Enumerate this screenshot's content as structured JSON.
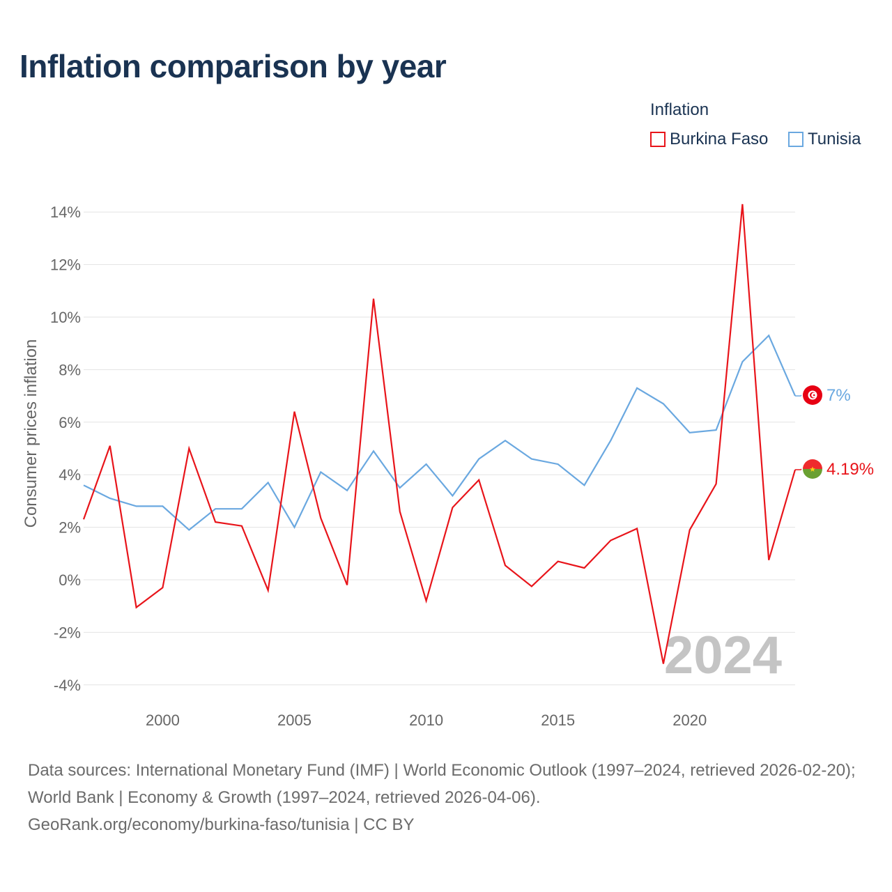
{
  "title": "Inflation comparison by year",
  "legend": {
    "title": "Inflation",
    "items": [
      {
        "name": "Burkina Faso",
        "color": "#e8141a"
      },
      {
        "name": "Tunisia",
        "color": "#6aa8e0"
      }
    ]
  },
  "sources": {
    "line1": "Data sources: International Monetary Fund (IMF) | World Economic Outlook (1997–2024, retrieved 2026-02-20); World Bank | Economy & Growth (1997–2024, retrieved 2026-04-06).",
    "line2": "GeoRank.org/economy/burkina-faso/tunisia | CC BY"
  },
  "chart_data": {
    "type": "line",
    "title": "Inflation comparison by year",
    "xlabel": "",
    "ylabel": "Consumer prices inflation",
    "year_watermark": "2024",
    "x": [
      1997,
      1998,
      1999,
      2000,
      2001,
      2002,
      2003,
      2004,
      2005,
      2006,
      2007,
      2008,
      2009,
      2010,
      2011,
      2012,
      2013,
      2014,
      2015,
      2016,
      2017,
      2018,
      2019,
      2020,
      2021,
      2022,
      2023,
      2024
    ],
    "xlim": [
      1997,
      2024
    ],
    "ylim": [
      -4.7,
      14.5
    ],
    "x_ticks": [
      2000,
      2005,
      2010,
      2015,
      2020
    ],
    "y_ticks": [
      -4,
      -2,
      0,
      2,
      4,
      6,
      8,
      10,
      12,
      14
    ],
    "y_tick_labels": [
      "-4%",
      "-2%",
      "0%",
      "2%",
      "4%",
      "6%",
      "8%",
      "10%",
      "12%",
      "14%"
    ],
    "grid": true,
    "legend_position": "top-right",
    "series": [
      {
        "name": "Burkina Faso",
        "color": "#e8141a",
        "values": [
          2.3,
          5.1,
          -1.05,
          -0.3,
          5.0,
          2.2,
          2.05,
          -0.4,
          6.4,
          2.35,
          -0.2,
          10.7,
          2.6,
          -0.8,
          2.75,
          3.8,
          0.55,
          -0.25,
          0.7,
          0.45,
          1.5,
          1.95,
          -3.2,
          1.9,
          3.65,
          14.3,
          0.75,
          4.19
        ],
        "end_label": "4.19%"
      },
      {
        "name": "Tunisia",
        "color": "#6aa8e0",
        "values": [
          3.6,
          3.1,
          2.8,
          2.8,
          1.9,
          2.7,
          2.7,
          3.7,
          2.0,
          4.1,
          3.4,
          4.9,
          3.5,
          4.4,
          3.2,
          4.6,
          5.3,
          4.6,
          4.4,
          3.6,
          5.3,
          7.3,
          6.7,
          5.6,
          5.7,
          8.3,
          9.3,
          7.0
        ],
        "end_label": "7%"
      }
    ]
  }
}
